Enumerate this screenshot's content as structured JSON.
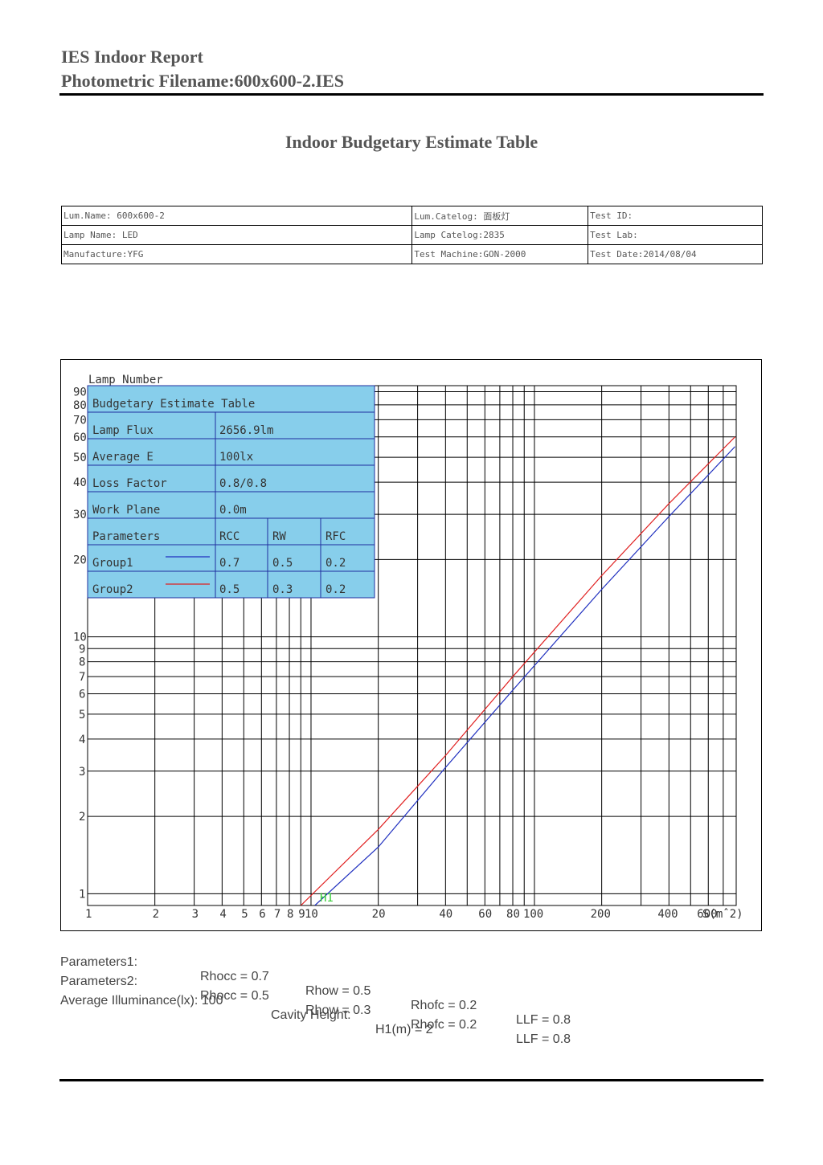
{
  "report": {
    "title": "IES Indoor Report",
    "filename": "Photometric Filename:600x600-2.IES",
    "table_title": "Indoor Budgetary Estimate Table"
  },
  "info_table": [
    [
      "Lum.Name:    600x600-2",
      "Lum.Catelog: 面板灯",
      "Test ID:"
    ],
    [
      "Lamp Name:  LED",
      "Lamp Catelog:2835",
      "Test Lab:"
    ],
    [
      "Manufacture:YFG",
      "Test Machine:GON-2000",
      "Test Date:2014/08/04"
    ]
  ],
  "legend_box": {
    "title": "Budgetary Estimate Table",
    "rows": [
      {
        "label": "Lamp Flux",
        "value": "2656.9lm"
      },
      {
        "label": "Average E",
        "value": "100lx"
      },
      {
        "label": "Loss Factor",
        "value": "0.8/0.8"
      },
      {
        "label": "Work Plane",
        "value": "0.0m"
      }
    ],
    "param_header": [
      "Parameters",
      "RCC",
      "RW",
      "RFC"
    ],
    "groups": [
      {
        "name": "Group1",
        "color": "#1f2fbf",
        "rcc": "0.7",
        "rw": "0.5",
        "rfc": "0.2"
      },
      {
        "name": "Group2",
        "color": "#e02020",
        "rcc": "0.5",
        "rw": "0.3",
        "rfc": "0.2"
      }
    ],
    "fill": "#87ceeb"
  },
  "chart_data": {
    "type": "line",
    "xscale": "log",
    "yscale": "log",
    "ylabel": "Lamp Number",
    "xlabel": "S(mˆ2)",
    "xlim": [
      1,
      800
    ],
    "ylim": [
      0.9,
      95
    ],
    "x_ticks": [
      1,
      2,
      3,
      4,
      5,
      6,
      7,
      8,
      9,
      10,
      20,
      40,
      60,
      80,
      100,
      200,
      400,
      600
    ],
    "y_ticks": [
      1,
      2,
      3,
      4,
      5,
      6,
      7,
      8,
      9,
      10,
      20,
      30,
      40,
      50,
      60,
      70,
      80,
      90
    ],
    "annotation": "H1",
    "series": [
      {
        "name": "Group1",
        "color": "#1f2fbf",
        "points": [
          [
            10.4,
            0.9
          ],
          [
            20,
            1.52
          ],
          [
            40,
            3.1
          ],
          [
            80,
            6.2
          ],
          [
            200,
            15.3
          ],
          [
            400,
            29.4
          ],
          [
            790,
            55
          ]
        ]
      },
      {
        "name": "Group2",
        "color": "#e02020",
        "points": [
          [
            9.0,
            0.9
          ],
          [
            20,
            1.78
          ],
          [
            40,
            3.45
          ],
          [
            80,
            7.0
          ],
          [
            200,
            17.3
          ],
          [
            400,
            33.0
          ],
          [
            790,
            60
          ]
        ]
      }
    ]
  },
  "parameters": {
    "line1": {
      "label": "Parameters1:",
      "rhocc": "Rhocc = 0.7",
      "rhow": "Rhow = 0.5",
      "rhofc": "Rhofc = 0.2",
      "llf": "LLF = 0.8"
    },
    "line2": {
      "label": "Parameters2:",
      "rhocc": "Rhocc = 0.5",
      "rhow": "Rhow = 0.3",
      "rhofc": "Rhofc = 0.2",
      "llf": "LLF = 0.8"
    },
    "line3": {
      "avg": "Average Illuminance(lx): 100",
      "cavity": "Cavity Height:",
      "h1": "H1(m) = 2"
    }
  }
}
